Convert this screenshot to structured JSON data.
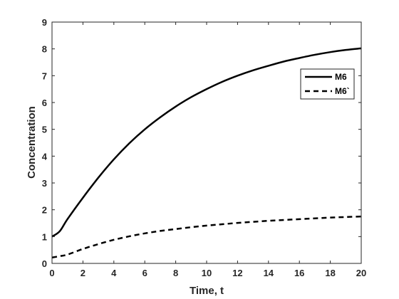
{
  "chart_data": {
    "type": "line",
    "title": "",
    "xlabel": "Time, t",
    "ylabel": "Concentration",
    "xlim": [
      0,
      20
    ],
    "ylim": [
      0,
      9
    ],
    "xticks": [
      "0",
      "2",
      "4",
      "6",
      "8",
      "10",
      "12",
      "14",
      "16",
      "18",
      "20"
    ],
    "yticks": [
      "0",
      "1",
      "2",
      "3",
      "4",
      "5",
      "6",
      "7",
      "8",
      "9"
    ],
    "grid": false,
    "legend_position": "top-right",
    "x": [
      0,
      0.5,
      1,
      2,
      3,
      4,
      5,
      6,
      7,
      8,
      9,
      10,
      11,
      12,
      13,
      14,
      15,
      16,
      17,
      18,
      19,
      20
    ],
    "series": [
      {
        "name": "M6",
        "style": "solid",
        "color": "#000000",
        "values": [
          1.0,
          1.2,
          1.65,
          2.45,
          3.2,
          3.88,
          4.48,
          5.0,
          5.45,
          5.85,
          6.2,
          6.5,
          6.77,
          7.0,
          7.2,
          7.37,
          7.53,
          7.66,
          7.78,
          7.88,
          7.96,
          8.02
        ]
      },
      {
        "name": "M6`",
        "style": "dashed",
        "color": "#000000",
        "values": [
          0.22,
          0.27,
          0.33,
          0.54,
          0.72,
          0.88,
          1.01,
          1.12,
          1.21,
          1.28,
          1.35,
          1.41,
          1.46,
          1.51,
          1.55,
          1.59,
          1.62,
          1.65,
          1.68,
          1.71,
          1.73,
          1.75
        ]
      }
    ]
  }
}
